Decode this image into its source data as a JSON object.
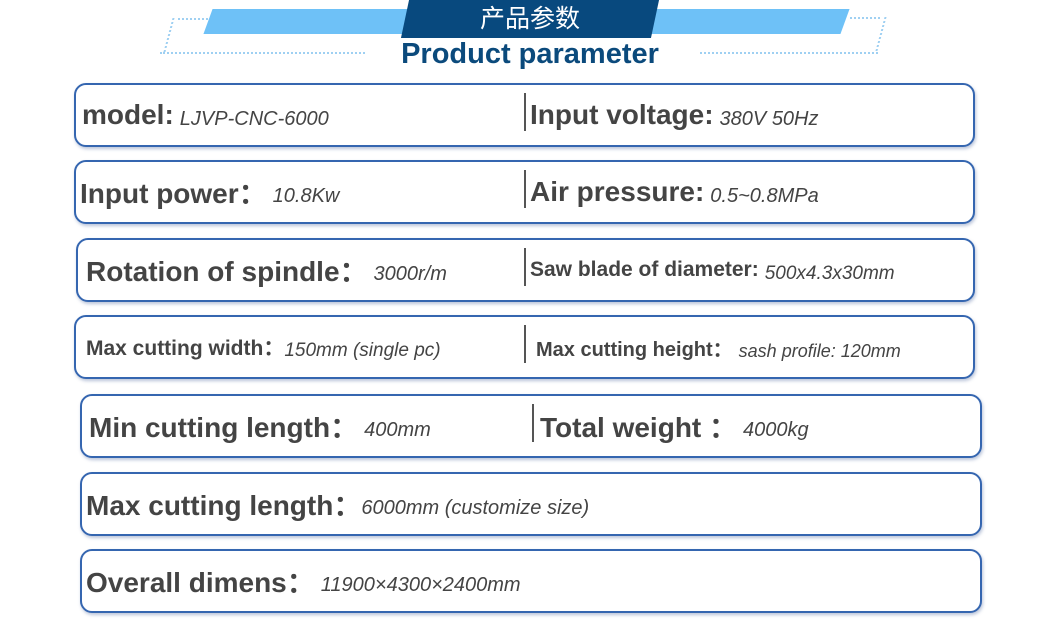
{
  "header": {
    "title_cn": "产品参数",
    "title_en": "Product parameter"
  },
  "rows": [
    {
      "left": {
        "label": "model:",
        "value": "LJVP-CNC-6000"
      },
      "right": {
        "label": "Input voltage:",
        "value": "380V 50Hz"
      }
    },
    {
      "left": {
        "label": "Input power：",
        "value": "10.8Kw"
      },
      "right": {
        "label": "Air pressure:",
        "value": "0.5~0.8MPa"
      }
    },
    {
      "left": {
        "label": "Rotation of spindle：",
        "value": "3000r/m"
      },
      "right": {
        "label": "Saw blade of diameter:",
        "value": "500x4.3x30mm"
      }
    },
    {
      "left": {
        "label": "Max cutting width：",
        "value": "150mm (single pc)"
      },
      "right": {
        "label": "Max cutting height：",
        "value": "sash profile: 120mm"
      }
    },
    {
      "left": {
        "label": "Min cutting length：",
        "value": "400mm"
      },
      "right": {
        "label": "Total weight ：",
        "value": "4000kg"
      }
    },
    {
      "left": {
        "label": "Max cutting length：",
        "value": "6000mm (customize size)"
      }
    },
    {
      "left": {
        "label": "Overall dimens：",
        "value": "11900×4300×2400mm"
      }
    }
  ]
}
